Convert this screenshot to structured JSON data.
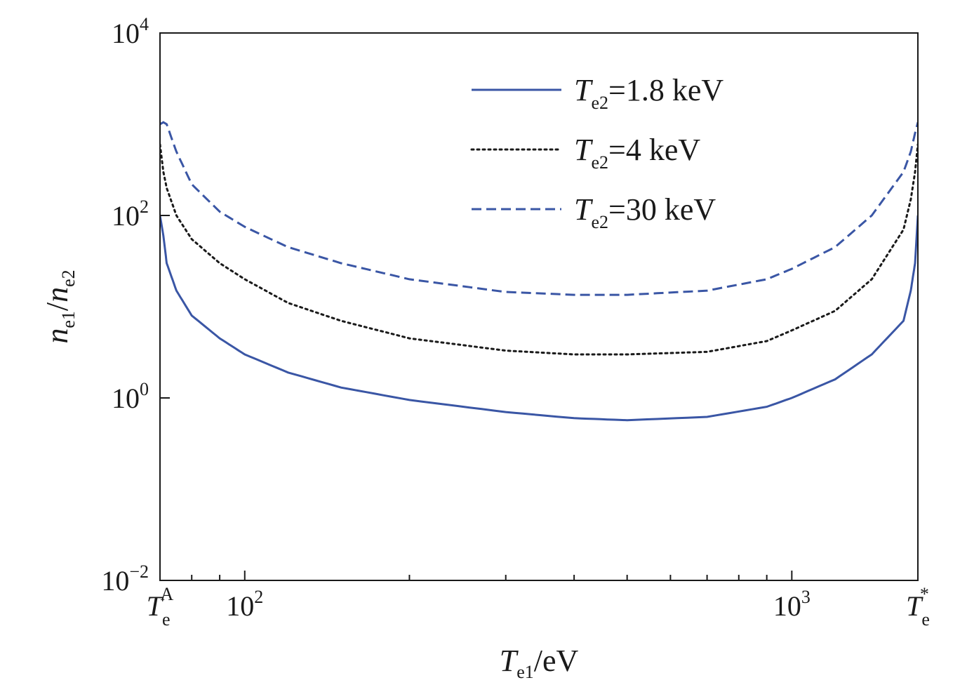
{
  "chart_data": {
    "type": "line",
    "xlabel": {
      "main": "T",
      "sub": "e1",
      "unit": "/eV"
    },
    "ylabel": {
      "main1": "n",
      "sub1": "e1",
      "slash": "/",
      "main2": "n",
      "sub2": "e2"
    },
    "x_scale": "log",
    "y_scale": "log",
    "xlim": [
      70,
      1700
    ],
    "ylim": [
      0.01,
      10000
    ],
    "x_ticks": [
      {
        "value": 70,
        "main": "T",
        "sub": "e",
        "sup": "A"
      },
      {
        "value": 100,
        "main": "10",
        "sup": "2"
      },
      {
        "value": 1000,
        "main": "10",
        "sup": "3"
      },
      {
        "value": 1700,
        "main": "T",
        "sub": "e",
        "sup": "*"
      }
    ],
    "y_ticks": [
      {
        "value": 0.01,
        "main": "10",
        "sup": "−2"
      },
      {
        "value": 1,
        "main": "10",
        "sup": "0"
      },
      {
        "value": 100,
        "main": "10",
        "sup": "2"
      },
      {
        "value": 10000,
        "main": "10",
        "sup": "4"
      }
    ],
    "grid": false,
    "legend_position": "top-right",
    "series": [
      {
        "name": "T_e2=1.8 keV",
        "label": {
          "main": "T",
          "sub": "e2",
          "rest": "=1.8 keV"
        },
        "color": "#3a56a5",
        "style": "solid",
        "x": [
          70,
          71,
          72,
          75,
          80,
          90,
          100,
          120,
          150,
          200,
          300,
          400,
          500,
          700,
          900,
          1000,
          1200,
          1400,
          1600,
          1650,
          1680,
          1700
        ],
        "y": [
          100,
          60,
          30,
          15,
          8,
          4.5,
          3,
          1.9,
          1.3,
          0.95,
          0.7,
          0.6,
          0.57,
          0.62,
          0.8,
          1.0,
          1.6,
          3.0,
          7,
          15,
          30,
          100
        ]
      },
      {
        "name": "T_e2=4 keV",
        "label": {
          "main": "T",
          "sub": "e2",
          "rest": "=4 keV"
        },
        "color": "#1a1a1a",
        "style": "dotted",
        "x": [
          70,
          71,
          72,
          75,
          80,
          90,
          100,
          120,
          150,
          200,
          300,
          400,
          500,
          700,
          900,
          1000,
          1200,
          1400,
          1600,
          1650,
          1680,
          1700
        ],
        "y": [
          600,
          300,
          200,
          100,
          55,
          30,
          20,
          11,
          7,
          4.5,
          3.3,
          3.0,
          3.0,
          3.2,
          4.2,
          5.5,
          9,
          20,
          70,
          150,
          300,
          600
        ]
      },
      {
        "name": "T_e2=30 keV",
        "label": {
          "main": "T",
          "sub": "e2",
          "rest": "=30 keV"
        },
        "color": "#3a56a5",
        "style": "dashed",
        "x": [
          70,
          71,
          72,
          75,
          80,
          90,
          100,
          120,
          150,
          200,
          300,
          400,
          500,
          700,
          900,
          1000,
          1200,
          1400,
          1600,
          1650,
          1680,
          1700
        ],
        "y": [
          1000,
          1050,
          1000,
          500,
          220,
          110,
          75,
          45,
          30,
          20,
          14.5,
          13.5,
          13.5,
          15,
          20,
          26,
          45,
          100,
          300,
          500,
          800,
          1050
        ]
      }
    ]
  }
}
